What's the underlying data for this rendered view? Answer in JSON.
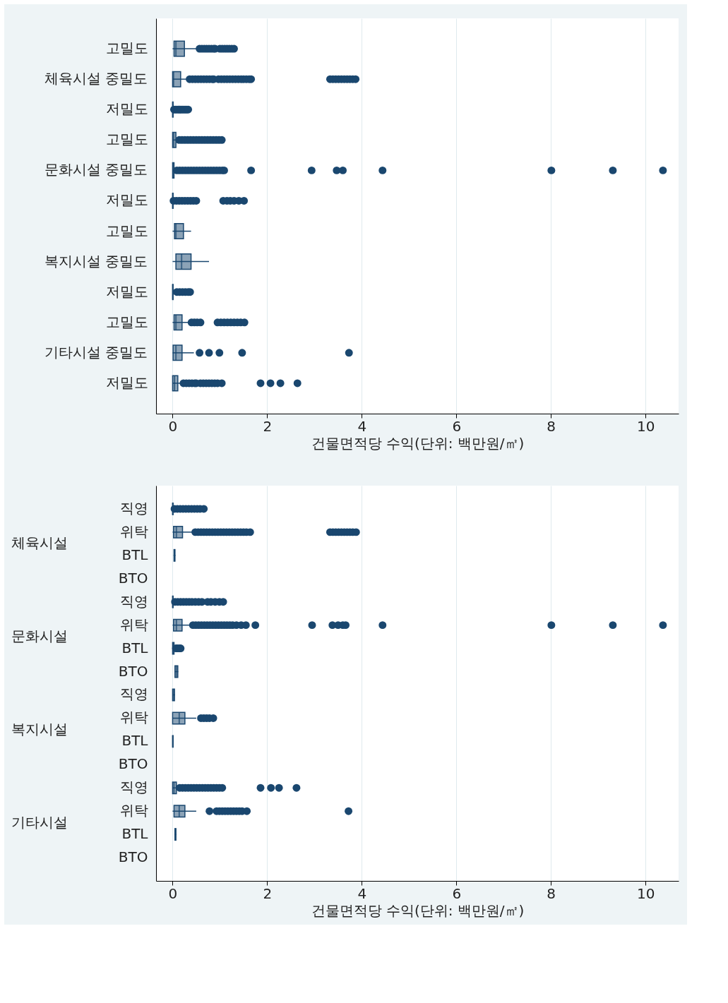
{
  "chart_data": [
    {
      "type": "box",
      "orientation": "horizontal",
      "xlabel": "건물면적당 수익(단위: 백만원/㎡)",
      "xlim": [
        -0.35,
        10.7
      ],
      "xticks": [
        0,
        2,
        4,
        6,
        8,
        10
      ],
      "grid": "x",
      "categories": [
        "고밀도",
        "체육시설 중밀도",
        "저밀도",
        "고밀도",
        "문화시설 중밀도",
        "저밀도",
        "고밀도",
        "복지시설 중밀도",
        "저밀도",
        "고밀도",
        "기타시설 중밀도",
        "저밀도"
      ],
      "series": [
        {
          "color": "#1a476f",
          "boxes": [
            {
              "low": 0,
              "q1": 0.03,
              "median": 0.07,
              "q3": 0.25,
              "high": 0.51,
              "outliers": [
                0.57,
                0.62,
                0.67,
                0.72,
                0.77,
                0.82,
                0.87,
                0.9,
                1.0,
                1.05,
                1.1,
                1.15,
                1.2,
                1.25,
                1.3
              ]
            },
            {
              "low": 0,
              "q1": 0,
              "median": 0.02,
              "q3": 0.17,
              "high": 0.33,
              "outliers": [
                0.36,
                0.42,
                0.48,
                0.54,
                0.6,
                0.66,
                0.72,
                0.78,
                0.84,
                0.87,
                0.97,
                1.03,
                1.09,
                1.15,
                1.21,
                1.27,
                1.33,
                1.39,
                1.45,
                1.5,
                1.56,
                1.62,
                1.66,
                3.33,
                3.39,
                3.45,
                3.51,
                3.57,
                3.63,
                3.69,
                3.75,
                3.81,
                3.87
              ]
            },
            {
              "low": 0,
              "q1": 0,
              "median": 0.005,
              "q3": 0.01,
              "high": 0.02,
              "outliers": [
                0.03,
                0.06,
                0.09,
                0.12,
                0.15,
                0.18,
                0.21,
                0.24,
                0.27,
                0.3,
                0.33
              ]
            },
            {
              "low": 0,
              "q1": 0,
              "median": 0.02,
              "q3": 0.07,
              "high": 0.1,
              "outliers": [
                0.14,
                0.2,
                0.26,
                0.32,
                0.38,
                0.44,
                0.5,
                0.56,
                0.62,
                0.68,
                0.74,
                0.8,
                0.86,
                0.92,
                0.98,
                1.04
              ]
            },
            {
              "low": 0,
              "q1": 0,
              "median": 0.01,
              "q3": 0.03,
              "high": 0.05,
              "outliers": [
                0.09,
                0.15,
                0.21,
                0.27,
                0.33,
                0.39,
                0.45,
                0.51,
                0.57,
                0.63,
                0.69,
                0.75,
                0.81,
                0.87,
                0.93,
                0.99,
                1.05,
                1.09,
                1.66,
                2.94,
                3.47,
                3.6,
                4.44,
                8.01,
                9.31,
                10.37
              ]
            },
            {
              "low": 0,
              "q1": 0,
              "median": 0.005,
              "q3": 0.01,
              "high": 0.015,
              "outliers": [
                0.02,
                0.08,
                0.14,
                0.2,
                0.26,
                0.32,
                0.38,
                0.44,
                0.5,
                1.07,
                1.15,
                1.22,
                1.3,
                1.4,
                1.51
              ]
            },
            {
              "low": 0,
              "q1": 0.04,
              "median": 0.07,
              "q3": 0.23,
              "high": 0.39
            },
            {
              "low": 0,
              "q1": 0.07,
              "median": 0.19,
              "q3": 0.39,
              "high": 0.77
            },
            {
              "low": 0,
              "q1": 0,
              "median": 0.005,
              "q3": 0.01,
              "high": 0.02,
              "outliers": [
                0.09,
                0.15,
                0.21,
                0.27,
                0.33,
                0.37
              ]
            },
            {
              "low": 0,
              "q1": 0.03,
              "median": 0.07,
              "q3": 0.2,
              "high": 0.36,
              "outliers": [
                0.4,
                0.46,
                0.52,
                0.59,
                0.95,
                1.02,
                1.09,
                1.16,
                1.23,
                1.3,
                1.37,
                1.44,
                1.52
              ]
            },
            {
              "low": 0,
              "q1": 0.01,
              "median": 0.07,
              "q3": 0.2,
              "high": 0.45,
              "outliers": [
                0.57,
                0.77,
                0.99,
                1.47,
                3.73
              ]
            },
            {
              "low": 0,
              "q1": 0,
              "median": 0.04,
              "q3": 0.11,
              "high": 0.19,
              "outliers": [
                0.23,
                0.29,
                0.35,
                0.41,
                0.47,
                0.5,
                0.59,
                0.65,
                0.71,
                0.77,
                0.83,
                0.89,
                0.95,
                1.04,
                1.86,
                2.07,
                2.28,
                2.64
              ]
            }
          ]
        }
      ]
    },
    {
      "type": "box",
      "orientation": "horizontal",
      "xlabel": "건물면적당 수익(단위: 백만원/㎡)",
      "xlim": [
        -0.35,
        10.7
      ],
      "xticks": [
        0,
        2,
        4,
        6,
        8,
        10
      ],
      "grid": "x",
      "annotations": [
        "체육시설",
        "문화시설",
        "복지시설",
        "기타시설"
      ],
      "categories": [
        "직영",
        "위탁",
        "BTL",
        "BTO",
        "직영",
        "위탁",
        "BTL",
        "BTO",
        "직영",
        "위탁",
        "BTL",
        "BTO",
        "직영",
        "위탁",
        "BTL",
        "BTO"
      ],
      "series": [
        {
          "color": "#1a476f",
          "boxes": [
            {
              "low": 0,
              "q1": 0,
              "median": 0.005,
              "q3": 0.01,
              "high": 0.02,
              "outliers": [
                0.04,
                0.1,
                0.16,
                0.22,
                0.28,
                0.34,
                0.4,
                0.46,
                0.52,
                0.58,
                0.66
              ]
            },
            {
              "low": 0,
              "q1": 0.02,
              "median": 0.08,
              "q3": 0.21,
              "high": 0.46,
              "outliers": [
                0.48,
                0.54,
                0.6,
                0.66,
                0.72,
                0.78,
                0.84,
                0.9,
                0.96,
                1.02,
                1.08,
                1.14,
                1.2,
                1.26,
                1.32,
                1.38,
                1.44,
                1.5,
                1.56,
                1.64,
                3.33,
                3.39,
                3.45,
                3.51,
                3.57,
                3.63,
                3.69,
                3.75,
                3.81,
                3.88
              ]
            },
            {
              "low": 0.02,
              "q1": 0.03,
              "median": 0.04,
              "q3": 0.05,
              "high": 0.06
            },
            null,
            {
              "low": 0,
              "q1": 0,
              "median": 0.005,
              "q3": 0.01,
              "high": 0.02,
              "outliers": [
                0.05,
                0.11,
                0.17,
                0.23,
                0.29,
                0.35,
                0.41,
                0.48,
                0.55,
                0.62,
                0.74,
                0.81,
                0.9,
                0.99,
                1.07
              ]
            },
            {
              "low": 0,
              "q1": 0.02,
              "median": 0.08,
              "q3": 0.2,
              "high": 0.41,
              "outliers": [
                0.43,
                0.49,
                0.55,
                0.61,
                0.67,
                0.73,
                0.79,
                0.85,
                0.91,
                0.97,
                1.03,
                1.09,
                1.15,
                1.21,
                1.27,
                1.35,
                1.45,
                1.55,
                1.75,
                2.95,
                3.38,
                3.5,
                3.6,
                3.66,
                4.44,
                8.01,
                9.31,
                10.37
              ]
            },
            {
              "low": 0,
              "q1": 0,
              "median": 0.01,
              "q3": 0.03,
              "high": 0.04,
              "outliers": [
                0.07,
                0.1,
                0.14,
                0.17
              ]
            },
            {
              "low": 0.04,
              "q1": 0.05,
              "median": 0.08,
              "q3": 0.11,
              "high": 0.12
            },
            {
              "low": 0,
              "q1": 0,
              "median": 0.02,
              "q3": 0.04,
              "high": 0.05
            },
            {
              "low": 0,
              "q1": 0,
              "median": 0.14,
              "q3": 0.26,
              "high": 0.5,
              "outliers": [
                0.6,
                0.66,
                0.72,
                0.78,
                0.86
              ]
            },
            {
              "low": 0,
              "q1": 0,
              "median": 0.005,
              "q3": 0.01,
              "high": 0.01
            },
            null,
            {
              "low": 0,
              "q1": 0,
              "median": 0.03,
              "q3": 0.08,
              "high": 0.12,
              "outliers": [
                0.15,
                0.21,
                0.27,
                0.33,
                0.39,
                0.45,
                0.51,
                0.57,
                0.63,
                0.69,
                0.75,
                0.81,
                0.87,
                0.93,
                0.99,
                1.05,
                1.86,
                2.08,
                2.25,
                2.62
              ]
            },
            {
              "low": 0,
              "q1": 0.03,
              "median": 0.14,
              "q3": 0.26,
              "high": 0.5,
              "outliers": [
                0.78,
                0.93,
                0.99,
                1.05,
                1.11,
                1.17,
                1.23,
                1.29,
                1.35,
                1.41,
                1.47,
                1.57,
                3.72
              ]
            },
            {
              "low": 0.04,
              "q1": 0.05,
              "median": 0.06,
              "q3": 0.07,
              "high": 0.08
            },
            null
          ]
        }
      ]
    }
  ]
}
